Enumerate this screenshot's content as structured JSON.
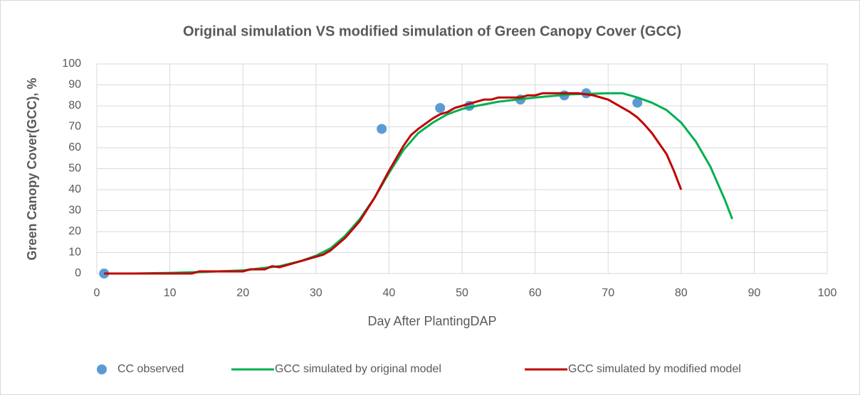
{
  "chart_data": {
    "type": "line",
    "title": "Original simulation VS modified simulation of Green Canopy Cover (GCC)",
    "x_label": "Day After PlantingDAP",
    "y_label": "Green Canopy Cover(GCC), %",
    "xlim": [
      0,
      100
    ],
    "xticks": [
      0,
      10,
      20,
      30,
      40,
      50,
      60,
      70,
      80,
      90,
      100
    ],
    "ylim": [
      0,
      100
    ],
    "yticks": [
      0,
      10,
      20,
      30,
      40,
      50,
      60,
      70,
      80,
      90,
      100
    ],
    "grid": true,
    "legend": "bottom",
    "series": [
      {
        "name": "CC observed",
        "type": "scatter",
        "color": "#5b9bd5",
        "x": [
          1,
          39,
          47,
          51,
          58,
          64,
          67,
          74
        ],
        "values": [
          0,
          69,
          79,
          80,
          83,
          85,
          86,
          81.5
        ]
      },
      {
        "name": "GCC simulated by original model",
        "type": "line",
        "color": "#00b050",
        "x": [
          1,
          5,
          10,
          15,
          20,
          25,
          28,
          30,
          32,
          34,
          36,
          38,
          40,
          42,
          44,
          46,
          48,
          50,
          52,
          55,
          60,
          65,
          70,
          72,
          74,
          76,
          78,
          80,
          82,
          84,
          86,
          87
        ],
        "values": [
          0,
          0,
          0.3,
          0.8,
          1.5,
          3.5,
          6,
          8.5,
          12,
          18,
          26,
          36,
          48,
          59,
          67,
          72,
          76,
          78.5,
          80,
          82,
          84,
          85.5,
          86,
          86,
          84,
          81.5,
          78,
          72,
          63,
          51,
          35,
          26
        ]
      },
      {
        "name": "GCC simulated by modified model",
        "type": "line",
        "color": "#c00000",
        "x": [
          1,
          13,
          14,
          20,
          21,
          23,
          24,
          25,
          28,
          30,
          31,
          32,
          34,
          36,
          38,
          40,
          42,
          43,
          44,
          46,
          47,
          48,
          49,
          50,
          52,
          53,
          54,
          55,
          58,
          59,
          60,
          61,
          66,
          68,
          70,
          72,
          73,
          74,
          75,
          76,
          77,
          78,
          79,
          80
        ],
        "values": [
          0,
          0,
          1,
          1,
          2,
          2,
          3.5,
          3,
          6,
          8,
          9,
          11,
          17,
          25,
          36,
          49,
          61,
          66,
          69,
          74,
          76,
          77,
          79,
          80,
          82,
          83,
          83,
          84,
          84,
          85,
          85,
          86,
          86,
          85,
          83,
          79,
          77,
          74.5,
          71,
          67,
          62,
          57,
          49,
          40
        ]
      }
    ]
  }
}
